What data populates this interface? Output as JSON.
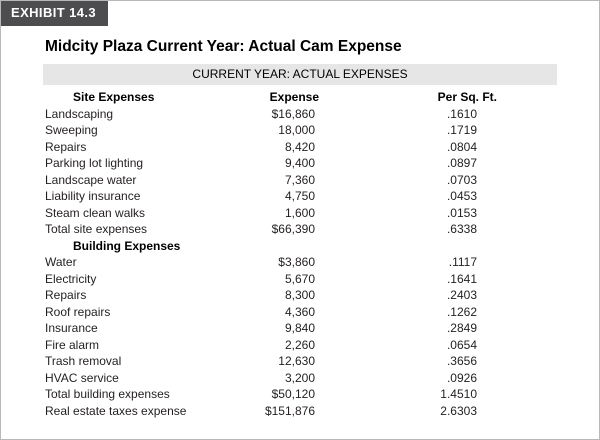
{
  "exhibit_label": "EXHIBIT 14.3",
  "title": "Midcity Plaza Current Year: Actual Cam Expense",
  "band_label": "CURRENT YEAR: ACTUAL EXPENSES",
  "columns": {
    "site": "Site Expenses",
    "expense": "Expense",
    "per_sq_ft": "Per Sq. Ft."
  },
  "site_rows": [
    {
      "label": "Landscaping",
      "expense": "$16,860",
      "per": ".1610"
    },
    {
      "label": "Sweeping",
      "expense": "18,000",
      "per": ".1719"
    },
    {
      "label": "Repairs",
      "expense": "8,420",
      "per": ".0804"
    },
    {
      "label": "Parking lot lighting",
      "expense": "9,400",
      "per": ".0897"
    },
    {
      "label": "Landscape water",
      "expense": "7,360",
      "per": ".0703"
    },
    {
      "label": "Liability insurance",
      "expense": "4,750",
      "per": ".0453"
    },
    {
      "label": "Steam clean walks",
      "expense": "1,600",
      "per": ".0153"
    },
    {
      "label": "Total site expenses",
      "expense": "$66,390",
      "per": ".6338"
    }
  ],
  "building_heading": "Building Expenses",
  "building_rows": [
    {
      "label": "Water",
      "expense": "$3,860",
      "per": ".1117"
    },
    {
      "label": "Electricity",
      "expense": "5,670",
      "per": ".1641"
    },
    {
      "label": "Repairs",
      "expense": "8,300",
      "per": ".2403"
    },
    {
      "label": "Roof repairs",
      "expense": "4,360",
      "per": ".1262"
    },
    {
      "label": "Insurance",
      "expense": "9,840",
      "per": ".2849"
    },
    {
      "label": "Fire alarm",
      "expense": "2,260",
      "per": ".0654"
    },
    {
      "label": "Trash removal",
      "expense": "12,630",
      "per": ".3656"
    },
    {
      "label": "HVAC service",
      "expense": "3,200",
      "per": ".0926"
    },
    {
      "label": "Total building expenses",
      "expense": "$50,120",
      "per": "1.4510"
    },
    {
      "label": "Real estate taxes expense",
      "expense": "$151,876",
      "per": "2.6303"
    }
  ]
}
